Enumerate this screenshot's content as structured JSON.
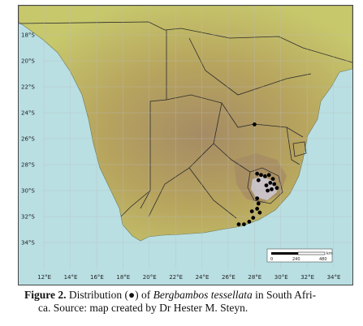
{
  "map": {
    "lat_labels": [
      "18°S",
      "20°S",
      "22°S",
      "24°S",
      "26°S",
      "28°S",
      "30°S",
      "32°S",
      "34°S"
    ],
    "lon_labels": [
      "12°E",
      "14°E",
      "16°E",
      "18°E",
      "20°E",
      "22°E",
      "24°E",
      "26°E",
      "28°E",
      "30°E",
      "32°E",
      "34°E"
    ],
    "scale_bar": {
      "unit": "km",
      "ticks": [
        "0",
        "240",
        "480"
      ]
    },
    "colors": {
      "sea": "#b9dfe3",
      "land_low": "#c7c86c",
      "land_mid": "#b7a45e",
      "land_high": "#a58b64",
      "peaks": "#c9c2c6",
      "borders": "#2b2b2b",
      "points": "#000000"
    },
    "occurrences": [
      {
        "lon": 28.0,
        "lat": -24.9
      },
      {
        "lon": 28.2,
        "lat": -28.7
      },
      {
        "lon": 28.5,
        "lat": -28.8
      },
      {
        "lon": 28.8,
        "lat": -28.9
      },
      {
        "lon": 29.1,
        "lat": -28.8
      },
      {
        "lon": 29.4,
        "lat": -29.1
      },
      {
        "lon": 28.3,
        "lat": -29.2
      },
      {
        "lon": 29.2,
        "lat": -29.4
      },
      {
        "lon": 29.5,
        "lat": -29.5
      },
      {
        "lon": 29.7,
        "lat": -29.8
      },
      {
        "lon": 29.3,
        "lat": -29.9
      },
      {
        "lon": 28.9,
        "lat": -29.6
      },
      {
        "lon": 29.0,
        "lat": -30.0
      },
      {
        "lon": 28.2,
        "lat": -30.6
      },
      {
        "lon": 28.3,
        "lat": -31.0
      },
      {
        "lon": 28.2,
        "lat": -31.4
      },
      {
        "lon": 28.4,
        "lat": -31.7
      },
      {
        "lon": 27.9,
        "lat": -32.1
      },
      {
        "lon": 27.6,
        "lat": -32.4
      },
      {
        "lon": 27.2,
        "lat": -32.6
      },
      {
        "lon": 26.8,
        "lat": -32.6
      },
      {
        "lon": 27.8,
        "lat": -31.6
      }
    ]
  },
  "caption": {
    "figure_label": "Figure 2.",
    "text_before": " Distribution (●) of ",
    "species": "Bergbambos tessellata",
    "text_after_line1": " in South Afri-",
    "line2": "ca. Source: map created by Dr Hester M. Steyn."
  }
}
